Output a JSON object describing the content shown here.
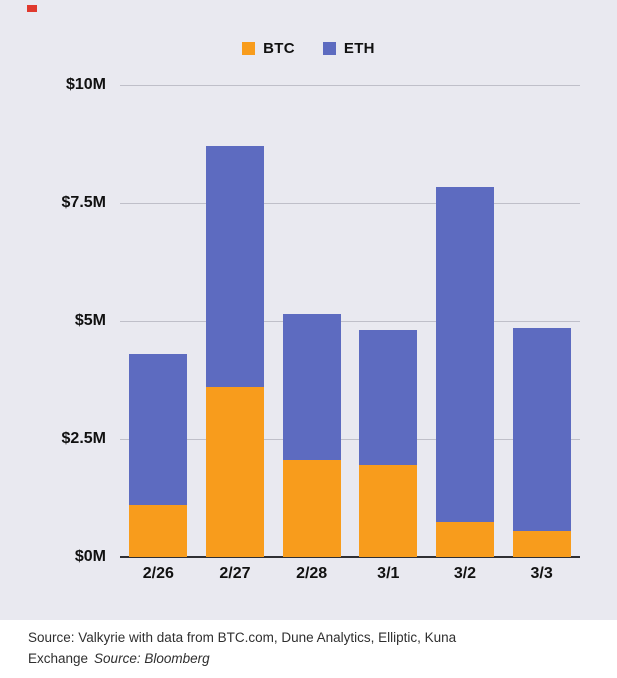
{
  "page": {
    "background_color": "#e9e9f0",
    "accent_mark_color": "#e0392e"
  },
  "legend": {
    "items": [
      {
        "label": "BTC",
        "color": "#f89c1c"
      },
      {
        "label": "ETH",
        "color": "#5d6bc0"
      }
    ]
  },
  "chart_data": {
    "type": "bar",
    "stacked": true,
    "title": "",
    "xlabel": "",
    "ylabel": "",
    "unit": "USD millions",
    "categories": [
      "2/26",
      "2/27",
      "2/28",
      "3/1",
      "3/2",
      "3/3"
    ],
    "series": [
      {
        "name": "BTC",
        "color": "#f89c1c",
        "values": [
          1.1,
          3.6,
          2.05,
          1.95,
          0.75,
          0.55
        ]
      },
      {
        "name": "ETH",
        "color": "#5d6bc0",
        "values": [
          3.2,
          5.1,
          3.1,
          2.85,
          7.1,
          4.3
        ]
      }
    ],
    "totals": [
      4.3,
      8.7,
      5.15,
      4.8,
      7.85,
      4.85
    ],
    "y_ticks": [
      "$10M",
      "$7.5M",
      "$5M",
      "$2.5M",
      "$0M"
    ],
    "y_tick_values": [
      10,
      7.5,
      5,
      2.5,
      0
    ],
    "ylim": [
      0,
      10
    ],
    "grid": true,
    "legend_position": "top"
  },
  "footer": {
    "line1": "Source: Valkyrie with data from BTC.com, Dune Analytics, Elliptic, Kuna",
    "line2_prefix": "Exchange",
    "attribution": "Source: Bloomberg"
  }
}
